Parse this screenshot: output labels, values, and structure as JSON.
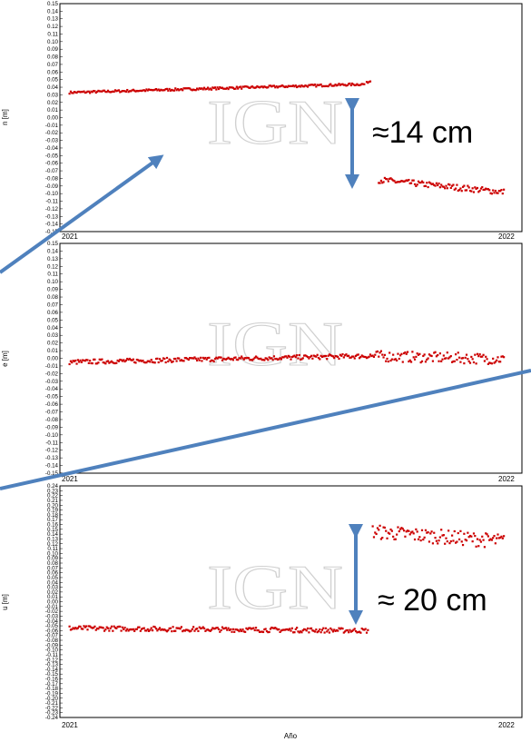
{
  "chart_data": [
    {
      "type": "scatter",
      "ylabel": "n [m]",
      "ylim": [
        -0.15,
        0.15
      ],
      "ytick_step": 0.01,
      "x_tick_labels": [
        "2021",
        "2022"
      ],
      "series_color": "#cc0000",
      "segments": [
        {
          "x_range": [
            "2021-01-01",
            "2021-09-03"
          ],
          "start": 0.033,
          "end": 0.044,
          "noise": 0.0015
        },
        {
          "x_range": [
            "2021-09-05",
            "2021-09-08"
          ],
          "start": 0.046,
          "end": 0.048,
          "noise": 0.001
        },
        {
          "x_range": [
            "2021-09-15",
            "2021-12-28"
          ],
          "start": -0.082,
          "end": -0.098,
          "noise": 0.004
        }
      ],
      "annotation": "≈14 cm"
    },
    {
      "type": "scatter",
      "ylabel": "e [m]",
      "ylim": [
        -0.15,
        0.15
      ],
      "ytick_step": 0.01,
      "x_tick_labels": [
        "2021",
        "2022"
      ],
      "series_color": "#cc0000",
      "segments": [
        {
          "x_range": [
            "2021-01-01",
            "2021-09-05"
          ],
          "start": -0.005,
          "end": 0.003,
          "noise": 0.003
        },
        {
          "x_range": [
            "2021-09-06",
            "2021-12-28"
          ],
          "start": 0.003,
          "end": -0.001,
          "noise": 0.007
        }
      ]
    },
    {
      "type": "scatter",
      "ylabel": "u [m]",
      "ylim": [
        -0.24,
        0.24
      ],
      "ytick_step": 0.01,
      "x_tick_labels": [
        "2021",
        "2022"
      ],
      "xlabel": "Año",
      "series_color": "#cc0000",
      "segments": [
        {
          "x_range": [
            "2021-01-01",
            "2021-09-06"
          ],
          "start": -0.055,
          "end": -0.06,
          "noise": 0.005
        },
        {
          "x_range": [
            "2021-09-10",
            "2021-12-28"
          ],
          "start": 0.145,
          "end": 0.125,
          "noise": 0.015
        }
      ],
      "annotation": "≈ 20 cm"
    }
  ],
  "watermark": "IGN",
  "colors": {
    "points": "#cc0000",
    "arrows": "#4f81bd"
  }
}
